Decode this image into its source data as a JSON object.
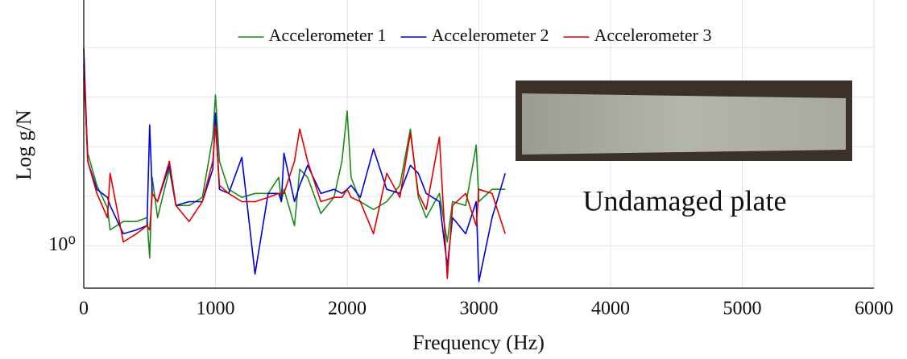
{
  "chart_data": {
    "type": "line",
    "xlabel": "Frequency (Hz)",
    "ylabel": "Log g/N",
    "annotation": "Undamaged plate",
    "log_y": true,
    "grid": true,
    "legend": "top",
    "xlim": [
      0,
      6000
    ],
    "xticks": [
      0,
      1000,
      2000,
      3000,
      4000,
      5000,
      6000
    ],
    "ylim": [
      0.14,
      91000
    ],
    "yticks": [
      {
        "value": 1,
        "label": "10⁰"
      }
    ],
    "yminor_grid": [
      10,
      100,
      1000,
      10000
    ],
    "x": [
      0,
      30,
      100,
      180,
      200,
      300,
      400,
      480,
      500,
      520,
      560,
      650,
      700,
      800,
      900,
      980,
      1000,
      1030,
      1100,
      1200,
      1300,
      1400,
      1480,
      1500,
      1520,
      1600,
      1640,
      1700,
      1800,
      1900,
      1960,
      2000,
      2030,
      2100,
      2200,
      2300,
      2400,
      2480,
      2540,
      2600,
      2700,
      2760,
      2800,
      2900,
      2980,
      3000,
      3100,
      3200
    ],
    "series": [
      {
        "name": "Accelerometer 1",
        "color": "#1a8a1a",
        "values": [
          2590,
          74,
          16.6,
          5.8,
          2.1,
          3.1,
          3.1,
          3.7,
          0.57,
          24,
          3.7,
          35,
          6.5,
          6.5,
          9.5,
          157,
          1100,
          51,
          13.8,
          9.5,
          11.4,
          11.4,
          24,
          7.8,
          13.8,
          2.55,
          35,
          24,
          4.5,
          9.5,
          51,
          520,
          24,
          7.8,
          5.4,
          7.8,
          16.6,
          228,
          9.5,
          3.7,
          11.4,
          1.2,
          7.8,
          6.5,
          108,
          7.8,
          13.8,
          13.8
        ]
      },
      {
        "name": "Accelerometer 2",
        "color": "#0000dd",
        "values": [
          9600,
          51,
          13.8,
          9.5,
          6.5,
          1.75,
          2.1,
          2.55,
          275,
          11.4,
          7.8,
          42,
          6.5,
          7.8,
          7.8,
          35,
          480,
          13.8,
          11.4,
          61,
          0.27,
          11.4,
          11.4,
          7.8,
          74,
          7.8,
          16.6,
          42,
          11.4,
          13.8,
          11.4,
          13.8,
          16.6,
          9.5,
          90,
          13.8,
          11.4,
          42,
          29,
          11.4,
          7.8,
          0.39,
          3.7,
          1.75,
          7.8,
          0.19,
          3.7,
          29
        ]
      },
      {
        "name": "Accelerometer 3",
        "color": "#e00000",
        "values": [
          4570,
          51,
          11.4,
          3.7,
          29,
          1.2,
          1.75,
          2.55,
          2.1,
          11.4,
          7.8,
          51,
          6.5,
          3.1,
          7.8,
          51,
          275,
          16.6,
          11.4,
          7.8,
          7.8,
          9.5,
          11.4,
          11.4,
          11.4,
          51,
          228,
          51,
          7.8,
          9.5,
          9.5,
          13.8,
          9.5,
          7.8,
          1.75,
          29,
          9.5,
          190,
          11.4,
          5.4,
          157,
          0.22,
          6.5,
          11.4,
          2.55,
          13.8,
          11.4,
          1.75
        ]
      }
    ]
  }
}
